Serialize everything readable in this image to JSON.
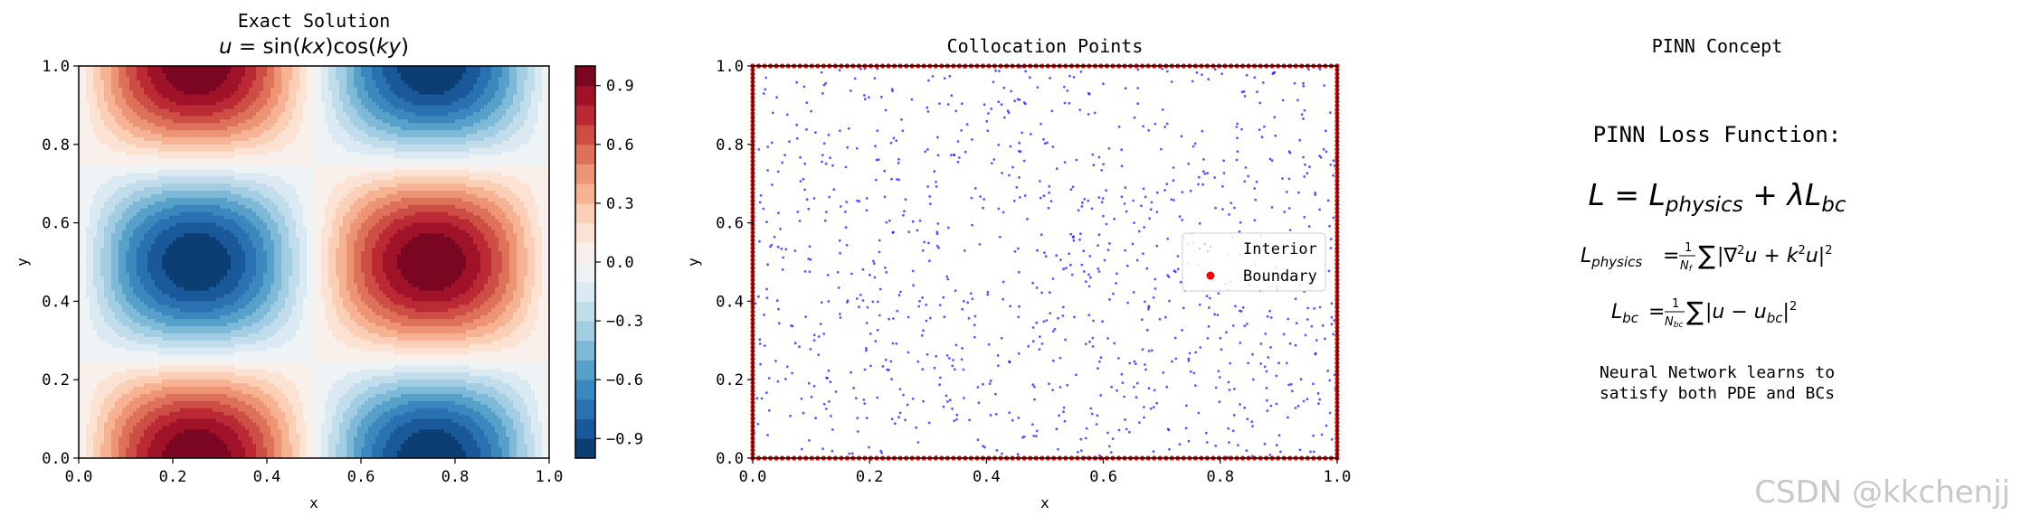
{
  "chart_data": [
    {
      "type": "heatmap",
      "title": "Exact Solution",
      "subtitle": "u = sin(kx)cos(ky)",
      "xlabel": "x",
      "ylabel": "y",
      "xlim": [
        0.0,
        1.0
      ],
      "ylim": [
        0.0,
        1.0
      ],
      "k": 6.2832,
      "function": "sin(k*x)*cos(k*y)",
      "xticks": [
        "0.0",
        "0.2",
        "0.4",
        "0.6",
        "0.8",
        "1.0"
      ],
      "yticks": [
        "0.0",
        "0.2",
        "0.4",
        "0.6",
        "0.8",
        "1.0"
      ],
      "colormap": "RdBu_r",
      "colorbar_range": [
        -1.0,
        1.0
      ],
      "colorbar_ticks": [
        "0.9",
        "0.6",
        "0.3",
        "0.0",
        "−0.3",
        "−0.6",
        "−0.9"
      ],
      "colorbar_tick_values": [
        0.9,
        0.6,
        0.3,
        0.0,
        -0.3,
        -0.6,
        -0.9
      ],
      "levels": 20
    },
    {
      "type": "scatter",
      "title": "Collocation Points",
      "xlabel": "x",
      "ylabel": "y",
      "xlim": [
        0.0,
        1.0
      ],
      "ylim": [
        0.0,
        1.0
      ],
      "xticks": [
        "0.0",
        "0.2",
        "0.4",
        "0.6",
        "0.8",
        "1.0"
      ],
      "yticks": [
        "0.0",
        "0.2",
        "0.4",
        "0.6",
        "0.8",
        "1.0"
      ],
      "series": [
        {
          "name": "Interior",
          "color": "#0000ff",
          "count": 1000,
          "distribution": "uniform random in (0,1)x(0,1)"
        },
        {
          "name": "Boundary",
          "color": "#ff0000",
          "count_per_edge": 100,
          "distribution": "evenly spaced on all four edges"
        }
      ],
      "legend_position": "center-right"
    }
  ],
  "concept_panel": {
    "title": "PINN Concept",
    "heading": "PINN Loss Function:",
    "eq_main": "L = L_physics + λL_bc",
    "eq_physics": "L_physics = 1/N_f ∑|∇²u + k²u|²",
    "eq_bc": "L_bc = 1/N_bc ∑|u − u_bc|²",
    "note_line1": "Neural Network learns to",
    "note_line2": "satisfy both PDE and BCs"
  },
  "watermark": "CSDN @kkchenjj",
  "colors": {
    "interior": "#0000ff",
    "boundary": "#ff0000",
    "axis": "#000000"
  }
}
